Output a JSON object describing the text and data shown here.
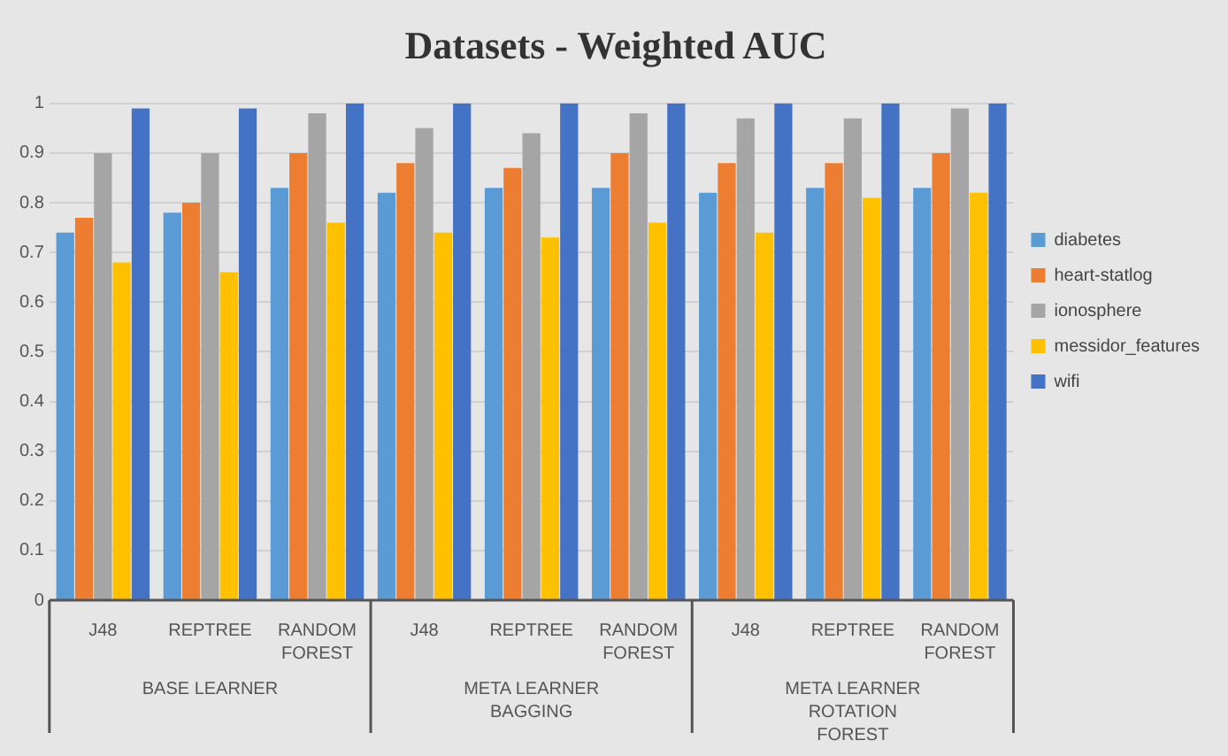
{
  "chart_data": {
    "type": "bar",
    "title": "Datasets - Weighted AUC",
    "categories": [
      "J48",
      "REPTREE",
      "RANDOM FOREST",
      "J48",
      "REPTREE",
      "RANDOM FOREST",
      "J48",
      "REPTREE",
      "RANDOM FOREST"
    ],
    "annotations": [
      "BASE LEARNER",
      "META LEARNER BAGGING",
      "META LEARNER ROTATION FOREST"
    ],
    "series": [
      {
        "name": "diabetes",
        "color": "#5b9bd5",
        "values": [
          0.74,
          0.78,
          0.83,
          0.82,
          0.83,
          0.83,
          0.82,
          0.83,
          0.83
        ]
      },
      {
        "name": "heart-statlog",
        "color": "#ed7d31",
        "values": [
          0.77,
          0.8,
          0.9,
          0.88,
          0.87,
          0.9,
          0.88,
          0.88,
          0.9
        ]
      },
      {
        "name": "ionosphere",
        "color": "#a5a5a5",
        "values": [
          0.9,
          0.9,
          0.98,
          0.95,
          0.94,
          0.98,
          0.97,
          0.97,
          0.99
        ]
      },
      {
        "name": "messidor_features",
        "color": "#ffc000",
        "values": [
          0.68,
          0.66,
          0.76,
          0.74,
          0.73,
          0.76,
          0.74,
          0.81,
          0.82
        ]
      },
      {
        "name": "wifi",
        "color": "#4472c4",
        "values": [
          0.99,
          0.99,
          1.0,
          1.0,
          1.0,
          1.0,
          1.0,
          1.0,
          1.0
        ]
      }
    ],
    "ylim": [
      0,
      1
    ],
    "yticks": [
      0,
      0.1,
      0.2,
      0.3,
      0.4,
      0.5,
      0.6,
      0.7,
      0.8,
      0.9,
      1
    ],
    "grid": "y",
    "legend": "right"
  }
}
